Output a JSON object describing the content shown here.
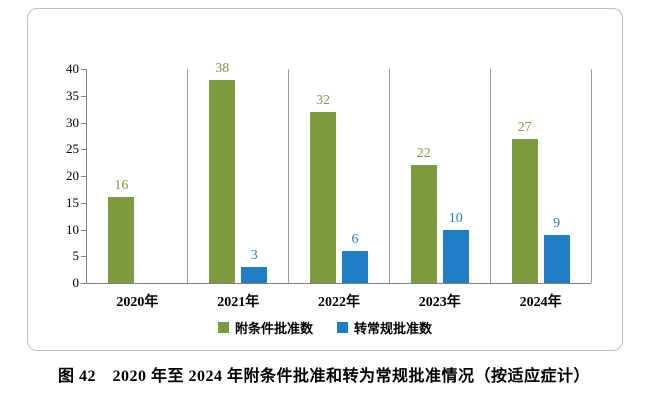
{
  "caption": "图 42　2020 年至 2024 年附条件批准和转为常规批准情况（按适应症计）",
  "chart_data": {
    "type": "bar",
    "title": "",
    "xlabel": "",
    "ylabel": "",
    "categories": [
      "2020年",
      "2021年",
      "2022年",
      "2023年",
      "2024年"
    ],
    "series": [
      {
        "name": "附条件批准数",
        "color": "#7E9B40",
        "values": [
          16,
          38,
          32,
          22,
          27
        ]
      },
      {
        "name": "转常规批准数",
        "color": "#1F7EC5",
        "values": [
          null,
          3,
          6,
          10,
          9
        ]
      }
    ],
    "ylim": [
      0,
      40
    ],
    "ytick_step": 5,
    "legend_position": "bottom",
    "grid": "vertical-category-dividers"
  }
}
